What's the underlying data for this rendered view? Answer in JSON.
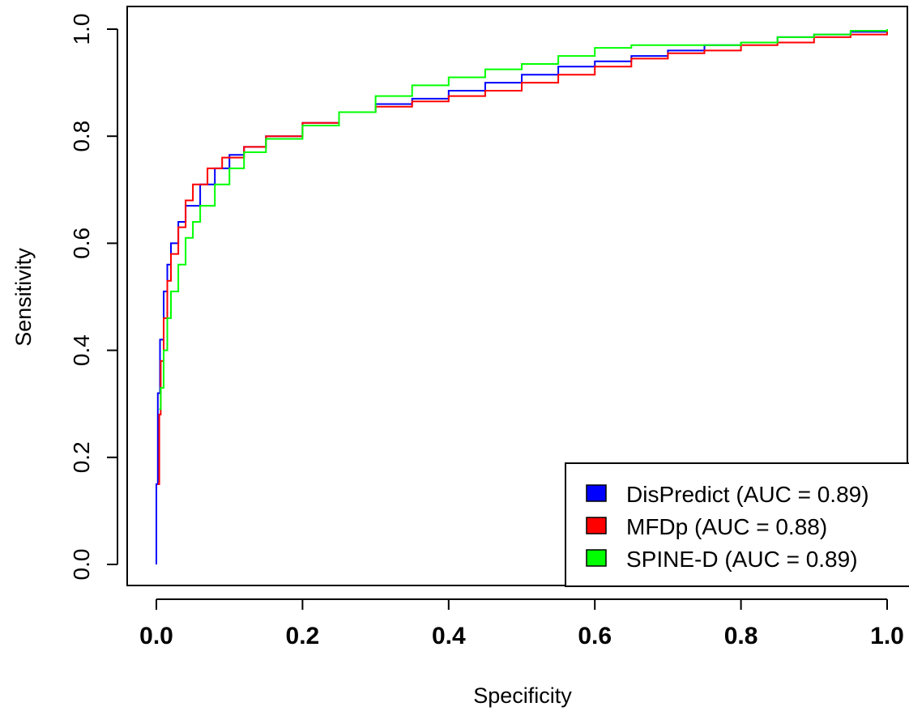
{
  "chart_data": {
    "type": "line",
    "title": "",
    "xlabel": "Specificity",
    "ylabel": "Sensitivity",
    "xlim": [
      0.0,
      1.0
    ],
    "ylim": [
      0.0,
      1.0
    ],
    "x_ticks": [
      "0.0",
      "0.2",
      "0.4",
      "0.6",
      "0.8",
      "1.0"
    ],
    "y_ticks": [
      "0.0",
      "0.2",
      "0.4",
      "0.6",
      "0.8",
      "1.0"
    ],
    "grid": false,
    "legend_position": "bottom-right",
    "series": [
      {
        "name": "DisPredict (AUC = 0.89)",
        "color": "#0000ff",
        "points": [
          [
            0,
            0
          ],
          [
            0,
            0.15
          ],
          [
            0.002,
            0.32
          ],
          [
            0.005,
            0.42
          ],
          [
            0.01,
            0.51
          ],
          [
            0.015,
            0.56
          ],
          [
            0.02,
            0.6
          ],
          [
            0.03,
            0.64
          ],
          [
            0.04,
            0.67
          ],
          [
            0.06,
            0.71
          ],
          [
            0.08,
            0.74
          ],
          [
            0.1,
            0.765
          ],
          [
            0.12,
            0.78
          ],
          [
            0.15,
            0.8
          ],
          [
            0.2,
            0.825
          ],
          [
            0.25,
            0.845
          ],
          [
            0.3,
            0.86
          ],
          [
            0.35,
            0.87
          ],
          [
            0.4,
            0.885
          ],
          [
            0.45,
            0.9
          ],
          [
            0.5,
            0.915
          ],
          [
            0.55,
            0.93
          ],
          [
            0.6,
            0.94
          ],
          [
            0.65,
            0.95
          ],
          [
            0.7,
            0.96
          ],
          [
            0.75,
            0.97
          ],
          [
            0.8,
            0.975
          ],
          [
            0.85,
            0.985
          ],
          [
            0.9,
            0.99
          ],
          [
            0.95,
            0.995
          ],
          [
            1.0,
            1.0
          ]
        ]
      },
      {
        "name": "MFDp (AUC = 0.88)",
        "color": "#ff0000",
        "points": [
          [
            0.002,
            0.15
          ],
          [
            0.004,
            0.28
          ],
          [
            0.006,
            0.38
          ],
          [
            0.01,
            0.46
          ],
          [
            0.015,
            0.53
          ],
          [
            0.02,
            0.58
          ],
          [
            0.03,
            0.63
          ],
          [
            0.04,
            0.68
          ],
          [
            0.05,
            0.71
          ],
          [
            0.07,
            0.74
          ],
          [
            0.09,
            0.76
          ],
          [
            0.12,
            0.78
          ],
          [
            0.15,
            0.8
          ],
          [
            0.2,
            0.825
          ],
          [
            0.25,
            0.845
          ],
          [
            0.3,
            0.855
          ],
          [
            0.35,
            0.865
          ],
          [
            0.4,
            0.875
          ],
          [
            0.45,
            0.885
          ],
          [
            0.5,
            0.9
          ],
          [
            0.55,
            0.915
          ],
          [
            0.6,
            0.93
          ],
          [
            0.65,
            0.945
          ],
          [
            0.7,
            0.955
          ],
          [
            0.75,
            0.96
          ],
          [
            0.8,
            0.97
          ],
          [
            0.85,
            0.975
          ],
          [
            0.9,
            0.985
          ],
          [
            0.95,
            0.99
          ],
          [
            1.0,
            1.0
          ]
        ]
      },
      {
        "name": "SPINE-D (AUC = 0.89)",
        "color": "#00ff00",
        "points": [
          [
            0.004,
            0.29
          ],
          [
            0.006,
            0.33
          ],
          [
            0.01,
            0.4
          ],
          [
            0.015,
            0.46
          ],
          [
            0.02,
            0.51
          ],
          [
            0.03,
            0.56
          ],
          [
            0.04,
            0.61
          ],
          [
            0.05,
            0.64
          ],
          [
            0.06,
            0.67
          ],
          [
            0.08,
            0.71
          ],
          [
            0.1,
            0.74
          ],
          [
            0.12,
            0.77
          ],
          [
            0.15,
            0.795
          ],
          [
            0.2,
            0.82
          ],
          [
            0.25,
            0.845
          ],
          [
            0.3,
            0.875
          ],
          [
            0.35,
            0.895
          ],
          [
            0.4,
            0.91
          ],
          [
            0.45,
            0.925
          ],
          [
            0.5,
            0.935
          ],
          [
            0.55,
            0.95
          ],
          [
            0.6,
            0.965
          ],
          [
            0.65,
            0.97
          ],
          [
            0.7,
            0.97
          ],
          [
            0.75,
            0.97
          ],
          [
            0.8,
            0.975
          ],
          [
            0.85,
            0.985
          ],
          [
            0.9,
            0.99
          ],
          [
            0.95,
            0.997
          ],
          [
            1.0,
            1.0
          ]
        ]
      }
    ]
  }
}
